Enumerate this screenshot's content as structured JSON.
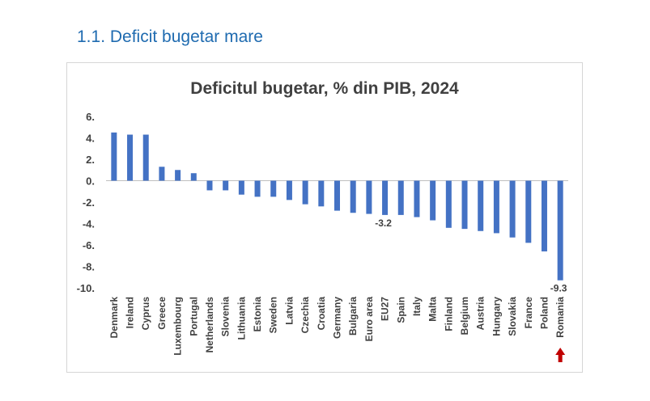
{
  "section": {
    "title": "1.1. Deficit bugetar mare"
  },
  "chart_data": {
    "type": "bar",
    "title": "Deficitul bugetar, % din PIB, 2024",
    "xlabel": "",
    "ylabel": "",
    "ylim": [
      -10,
      6
    ],
    "yticks": [
      6,
      4,
      2,
      0,
      -2,
      -4,
      -6,
      -8,
      -10
    ],
    "ytick_labels": [
      "6.",
      "4.",
      "2.",
      "0.",
      "-2.",
      "-4.",
      "-6.",
      "-8.",
      "-10."
    ],
    "grid": false,
    "legend": "none",
    "bar_color": "#4472c4",
    "categories": [
      "Denmark",
      "Ireland",
      "Cyprus",
      "Greece",
      "Luxembourg",
      "Portugal",
      "Netherlands",
      "Slovenia",
      "Lithuania",
      "Estonia",
      "Sweden",
      "Latvia",
      "Czechia",
      "Croatia",
      "Germany",
      "Bulgaria",
      "Euro area",
      "EU27",
      "Spain",
      "Italy",
      "Malta",
      "Finland",
      "Belgium",
      "Austria",
      "Hungary",
      "Slovakia",
      "France",
      "Poland",
      "Romania"
    ],
    "values": [
      4.5,
      4.3,
      4.3,
      1.3,
      1.0,
      0.7,
      -0.9,
      -0.9,
      -1.3,
      -1.5,
      -1.5,
      -1.8,
      -2.2,
      -2.4,
      -2.8,
      -3.0,
      -3.1,
      -3.2,
      -3.2,
      -3.4,
      -3.7,
      -4.4,
      -4.5,
      -4.7,
      -4.9,
      -5.3,
      -5.8,
      -6.6,
      -9.3
    ],
    "data_labels": [
      {
        "category": "EU27",
        "text": "-3.2"
      },
      {
        "category": "Romania",
        "text": "-9.3"
      }
    ],
    "highlight": {
      "category": "Romania",
      "marker": "up-arrow-icon",
      "color": "#c00000"
    }
  }
}
